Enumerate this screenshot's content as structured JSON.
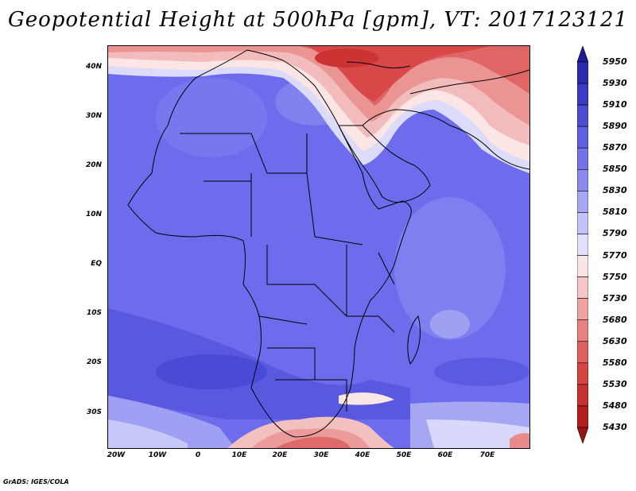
{
  "title": "Geopotential Height at 500hPa [gpm], VT: 2017123121",
  "credit": "GrADS: IGES/COLA",
  "y_axis_labels": [
    "40N",
    "30N",
    "20N",
    "10N",
    "EQ",
    "10S",
    "20S",
    "30S"
  ],
  "x_axis_labels": [
    "20W",
    "10W",
    "0",
    "10E",
    "20E",
    "30E",
    "40E",
    "50E",
    "60E",
    "70E"
  ],
  "colorbar": {
    "levels": [
      "5950",
      "5930",
      "5910",
      "5890",
      "5870",
      "5850",
      "5830",
      "5810",
      "5790",
      "5770",
      "5750",
      "5730",
      "5680",
      "5630",
      "5580",
      "5530",
      "5480",
      "5430"
    ],
    "colors": [
      "#1d1d9a",
      "#2b2bb0",
      "#3a3ac4",
      "#4d4dd4",
      "#6161e0",
      "#7474e8",
      "#8b8bee",
      "#a6a6f2",
      "#c3c3f7",
      "#e0e0fb",
      "#fbe4e4",
      "#f6c6c6",
      "#efa4a4",
      "#e88080",
      "#e06060",
      "#d64444",
      "#c93030",
      "#b41e1e",
      "#9a1414"
    ]
  },
  "legend_colors": {
    "ocean_deep": "#4a4ad2",
    "mid": "#7070ec",
    "light": "#9a9af2",
    "warm_red": "#e05050"
  }
}
